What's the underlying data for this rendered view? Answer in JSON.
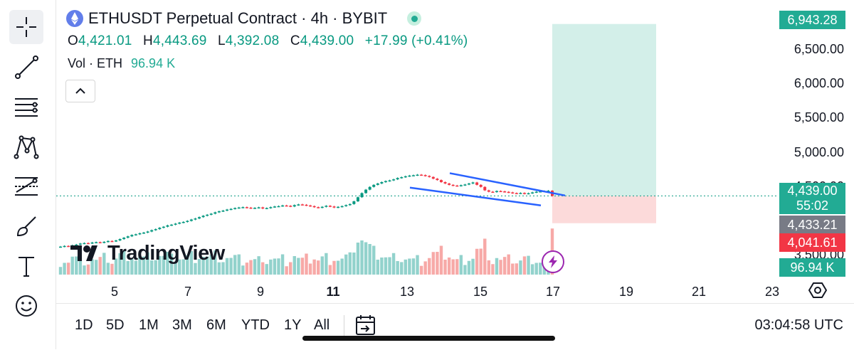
{
  "header": {
    "title": "ETHUSDT Perpetual Contract · 4h · BYBIT",
    "ohlc": {
      "o_label": "O",
      "o": "4,421.01",
      "h_label": "H",
      "h": "4,443.69",
      "l_label": "L",
      "l": "4,392.08",
      "c_label": "C",
      "c": "4,439.00",
      "change": "+17.99 (+0.41%)"
    },
    "volume": {
      "label": "Vol · ETH",
      "value": "96.94 K"
    },
    "status_color": "#22ab94"
  },
  "toolbar": {
    "icons": [
      "crosshair-icon",
      "trend-line-icon",
      "horizontal-lines-icon",
      "pattern-icon",
      "forecast-icon",
      "brush-icon",
      "text-icon",
      "emoji-icon"
    ]
  },
  "price_axis": {
    "labels": [
      "6,500.00",
      "6,000.00",
      "5,500.00",
      "5,000.00",
      "4,500.00",
      "3,500.00"
    ],
    "target_tag": "6,943.28",
    "last_price_tag": "4,439.00",
    "countdown_tag": "55:02",
    "mid_tag": "4,433.21",
    "stop_tag": "4,041.61",
    "volume_tag": "96.94 K"
  },
  "time_axis": {
    "labels": [
      "5",
      "7",
      "9",
      "11",
      "13",
      "15",
      "17",
      "19",
      "21",
      "23"
    ],
    "bold": "11"
  },
  "bottom_bar": {
    "ranges": [
      "1D",
      "5D",
      "1M",
      "3M",
      "6M",
      "YTD",
      "1Y",
      "All"
    ],
    "clock": "03:04:58 UTC"
  },
  "watermark": "TradingView",
  "colors": {
    "up": "#089981",
    "down": "#f23645",
    "vol_up": "#92d2cc",
    "vol_down": "#f7a9a7",
    "channel": "#2962ff",
    "target_zone": "#d3efe9",
    "stop_zone": "#fcdada"
  },
  "chart_data": {
    "type": "candlestick",
    "title": "ETHUSDT Perpetual Contract · 4h · BYBIT",
    "x_ticks": [
      "5",
      "7",
      "9",
      "11",
      "13",
      "15",
      "17",
      "19",
      "21",
      "23"
    ],
    "y_ticks": [
      3500,
      4500,
      5000,
      5500,
      6000,
      6500
    ],
    "ylim": [
      3350,
      7050
    ],
    "candles_close": [
      3700,
      3710,
      3705,
      3720,
      3730,
      3745,
      3752,
      3748,
      3760,
      3765,
      3758,
      3770,
      3782,
      3778,
      3790,
      3810,
      3830,
      3850,
      3870,
      3880,
      3895,
      3905,
      3920,
      3940,
      3955,
      3975,
      3990,
      4010,
      4020,
      4035,
      4050,
      4060,
      4075,
      4095,
      4110,
      4130,
      4150,
      4165,
      4180,
      4200,
      4215,
      4225,
      4240,
      4250,
      4262,
      4270,
      4275,
      4268,
      4260,
      4265,
      4272,
      4255,
      4262,
      4275,
      4285,
      4290,
      4300,
      4295,
      4285,
      4305,
      4315,
      4310,
      4300,
      4290,
      4275,
      4268,
      4280,
      4295,
      4285,
      4270,
      4280,
      4290,
      4305,
      4320,
      4360,
      4420,
      4480,
      4530,
      4570,
      4600,
      4620,
      4640,
      4655,
      4665,
      4680,
      4700,
      4712,
      4725,
      4735,
      4740,
      4748,
      4742,
      4730,
      4715,
      4690,
      4670,
      4640,
      4620,
      4600,
      4590,
      4585,
      4595,
      4605,
      4620,
      4635,
      4600,
      4570,
      4520,
      4500,
      4495,
      4510,
      4505,
      4498,
      4490,
      4480,
      4475,
      4482,
      4470,
      4478,
      4490,
      4500,
      4505,
      4510,
      4515,
      4439
    ],
    "target_price": 6943.28,
    "entry_price": 4439.0,
    "stop_price": 4041.61,
    "last_price": 4439.0
  }
}
